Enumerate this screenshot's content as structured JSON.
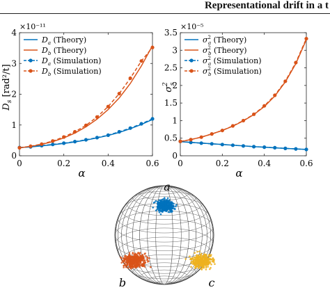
{
  "header": {
    "title": "Representational drift in a t"
  },
  "chart_data": [
    {
      "type": "line",
      "panel": "left",
      "xlabel": "α",
      "ylabel": "D_s [rad²/t]",
      "exponent": "×10⁻¹¹",
      "xlim": [
        0,
        0.6
      ],
      "ylim": [
        0,
        4
      ],
      "xticks": [
        "0",
        "0.2",
        "0.4",
        "0.6"
      ],
      "yticks": [
        "0",
        "1",
        "2",
        "3",
        "4"
      ],
      "legend_position": "top-left",
      "series": [
        {
          "name": "D_a (Theory)",
          "label": "(Theory)",
          "sym": "D",
          "sub": "a",
          "sup": "",
          "color": "#0072BD",
          "style": "solid",
          "marker": "none",
          "x": [
            0,
            0.05,
            0.1,
            0.15,
            0.2,
            0.25,
            0.3,
            0.35,
            0.4,
            0.45,
            0.5,
            0.55,
            0.6
          ],
          "y": [
            0.27,
            0.29,
            0.32,
            0.36,
            0.4,
            0.45,
            0.51,
            0.58,
            0.66,
            0.76,
            0.88,
            1.02,
            1.18
          ]
        },
        {
          "name": "D_b (Theory)",
          "label": "(Theory)",
          "sym": "D",
          "sub": "b",
          "sup": "",
          "color": "#D95319",
          "style": "solid",
          "marker": "none",
          "x": [
            0,
            0.05,
            0.1,
            0.15,
            0.2,
            0.25,
            0.3,
            0.35,
            0.4,
            0.45,
            0.5,
            0.55,
            0.6
          ],
          "y": [
            0.26,
            0.3,
            0.37,
            0.46,
            0.58,
            0.74,
            0.94,
            1.19,
            1.5,
            1.88,
            2.35,
            2.92,
            3.58
          ]
        },
        {
          "name": "D_a (Simulation)",
          "label": "(Simulation)",
          "sym": "D",
          "sub": "a",
          "sup": "",
          "color": "#0072BD",
          "style": "dashed",
          "marker": "circle",
          "x": [
            0,
            0.05,
            0.1,
            0.15,
            0.2,
            0.25,
            0.3,
            0.35,
            0.4,
            0.45,
            0.5,
            0.55,
            0.6
          ],
          "y": [
            0.27,
            0.29,
            0.33,
            0.37,
            0.41,
            0.46,
            0.52,
            0.59,
            0.67,
            0.78,
            0.9,
            1.04,
            1.2
          ]
        },
        {
          "name": "D_b (Simulation)",
          "label": "(Simulation)",
          "sym": "D",
          "sub": "b",
          "sup": "",
          "color": "#D95319",
          "style": "dashed",
          "marker": "circle",
          "x": [
            0,
            0.05,
            0.1,
            0.15,
            0.2,
            0.25,
            0.3,
            0.35,
            0.4,
            0.45,
            0.5,
            0.55,
            0.6
          ],
          "y": [
            0.26,
            0.31,
            0.38,
            0.48,
            0.61,
            0.78,
            0.99,
            1.26,
            1.6,
            2.02,
            2.52,
            3.08,
            3.52
          ]
        }
      ]
    },
    {
      "type": "line",
      "panel": "right",
      "xlabel": "α",
      "ylabel": "σ²_s",
      "exponent": "×10⁻⁵",
      "xlim": [
        0,
        0.6
      ],
      "ylim": [
        0,
        3.5
      ],
      "xticks": [
        "0",
        "0.2",
        "0.4",
        "0.6"
      ],
      "yticks": [
        "0",
        "0.5",
        "1",
        "1.5",
        "2",
        "2.5",
        "3",
        "3.5"
      ],
      "legend_position": "top-left",
      "series": [
        {
          "name": "σ_a² (Theory)",
          "label": "(Theory)",
          "sym": "σ",
          "sub": "a",
          "sup": "2",
          "color": "#0072BD",
          "style": "solid",
          "marker": "none",
          "x": [
            0,
            0.05,
            0.1,
            0.15,
            0.2,
            0.25,
            0.3,
            0.35,
            0.4,
            0.45,
            0.5,
            0.55,
            0.6
          ],
          "y": [
            0.4,
            0.38,
            0.36,
            0.34,
            0.32,
            0.3,
            0.28,
            0.26,
            0.245,
            0.225,
            0.21,
            0.195,
            0.18
          ]
        },
        {
          "name": "σ_b² (Theory)",
          "label": "(Theory)",
          "sym": "σ",
          "sub": "b",
          "sup": "2",
          "color": "#D95319",
          "style": "solid",
          "marker": "none",
          "x": [
            0,
            0.05,
            0.1,
            0.15,
            0.2,
            0.25,
            0.3,
            0.35,
            0.4,
            0.45,
            0.5,
            0.55,
            0.6
          ],
          "y": [
            0.4,
            0.46,
            0.53,
            0.62,
            0.72,
            0.84,
            0.99,
            1.17,
            1.4,
            1.7,
            2.1,
            2.62,
            3.3
          ]
        },
        {
          "name": "σ_a² (Simulation)",
          "label": "(Simulation)",
          "sym": "σ",
          "sub": "a",
          "sup": "2",
          "color": "#0072BD",
          "style": "dashed",
          "marker": "circle",
          "x": [
            0,
            0.05,
            0.1,
            0.15,
            0.2,
            0.25,
            0.3,
            0.35,
            0.4,
            0.45,
            0.5,
            0.55,
            0.6
          ],
          "y": [
            0.41,
            0.38,
            0.36,
            0.34,
            0.32,
            0.3,
            0.28,
            0.26,
            0.245,
            0.23,
            0.21,
            0.195,
            0.18
          ]
        },
        {
          "name": "σ_b² (Simulation)",
          "label": "(Simulation)",
          "sym": "σ",
          "sub": "b",
          "sup": "2",
          "color": "#D95319",
          "style": "dashed",
          "marker": "circle",
          "x": [
            0,
            0.05,
            0.1,
            0.15,
            0.2,
            0.25,
            0.3,
            0.35,
            0.4,
            0.45,
            0.5,
            0.55,
            0.6
          ],
          "y": [
            0.41,
            0.46,
            0.53,
            0.62,
            0.72,
            0.85,
            1.0,
            1.18,
            1.42,
            1.72,
            2.12,
            2.65,
            3.33
          ]
        }
      ]
    }
  ],
  "sphere": {
    "labels": [
      "a",
      "b",
      "c"
    ],
    "cluster_colors": {
      "a": "#0072BD",
      "b": "#D95319",
      "c": "#EDB120"
    }
  }
}
